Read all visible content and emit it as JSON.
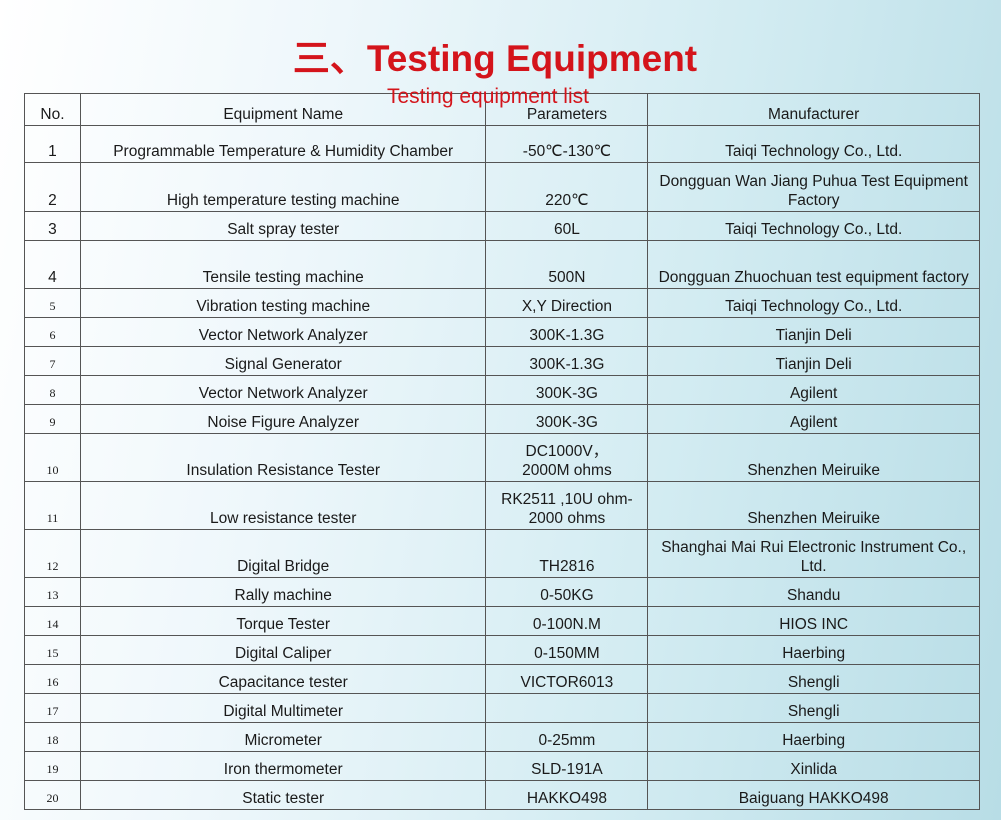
{
  "title": "三、Testing Equipment",
  "subtitle": "Testing equipment list",
  "table": {
    "headers": [
      "No.",
      "Equipment Name",
      "Parameters",
      "Manufacturer"
    ],
    "rows": [
      {
        "no": "1",
        "name": "Programmable Temperature & Humidity Chamber",
        "params": "-50℃-130℃",
        "maker": "Taiqi Technology Co., Ltd."
      },
      {
        "no": "2",
        "name": "High temperature testing machine",
        "params": "220℃",
        "maker": "Dongguan Wan Jiang Puhua Test Equipment Factory"
      },
      {
        "no": "3",
        "name": "Salt spray tester",
        "params": "60L",
        "maker": "Taiqi Technology Co., Ltd."
      },
      {
        "no": "4",
        "name": "Tensile testing machine",
        "params": "500N",
        "maker": "Dongguan Zhuochuan test equipment factory"
      },
      {
        "no": "5",
        "name": "Vibration testing machine",
        "params": "X,Y Direction",
        "maker": "Taiqi Technology Co., Ltd."
      },
      {
        "no": "6",
        "name": "Vector Network Analyzer",
        "params": "300K-1.3G",
        "maker": "Tianjin Deli"
      },
      {
        "no": "7",
        "name": "Signal Generator",
        "params": "300K-1.3G",
        "maker": "Tianjin Deli"
      },
      {
        "no": "8",
        "name": "Vector Network Analyzer",
        "params": "300K-3G",
        "maker": "Agilent"
      },
      {
        "no": "9",
        "name": "Noise Figure Analyzer",
        "params": "300K-3G",
        "maker": "Agilent"
      },
      {
        "no": "10",
        "name": "Insulation Resistance Tester",
        "params": "DC1000V，\n2000M ohms",
        "maker": "Shenzhen Meiruike"
      },
      {
        "no": "11",
        "name": "Low resistance tester",
        "params": "RK2511 ,10U ohm-\n2000 ohms",
        "maker": "Shenzhen Meiruike"
      },
      {
        "no": "12",
        "name": "Digital Bridge",
        "params": "TH2816",
        "maker": "Shanghai Mai Rui Electronic Instrument Co., Ltd."
      },
      {
        "no": "13",
        "name": "Rally machine",
        "params": "0-50KG",
        "maker": "Shandu"
      },
      {
        "no": "14",
        "name": "Torque Tester",
        "params": "0-100N.M",
        "maker": "HIOS INC"
      },
      {
        "no": "15",
        "name": "Digital Caliper",
        "params": "0-150MM",
        "maker": "Haerbing"
      },
      {
        "no": "16",
        "name": "Capacitance tester",
        "params": "VICTOR6013",
        "maker": "Shengli"
      },
      {
        "no": "17",
        "name": "Digital Multimeter",
        "params": "",
        "maker": "Shengli"
      },
      {
        "no": "18",
        "name": "Micrometer",
        "params": "0-25mm",
        "maker": "Haerbing"
      },
      {
        "no": "19",
        "name": "Iron thermometer",
        "params": "SLD-191A",
        "maker": "Xinlida"
      },
      {
        "no": "20",
        "name": "Static tester",
        "params": "HAKKO498",
        "maker": "Baiguang HAKKO498"
      }
    ]
  }
}
